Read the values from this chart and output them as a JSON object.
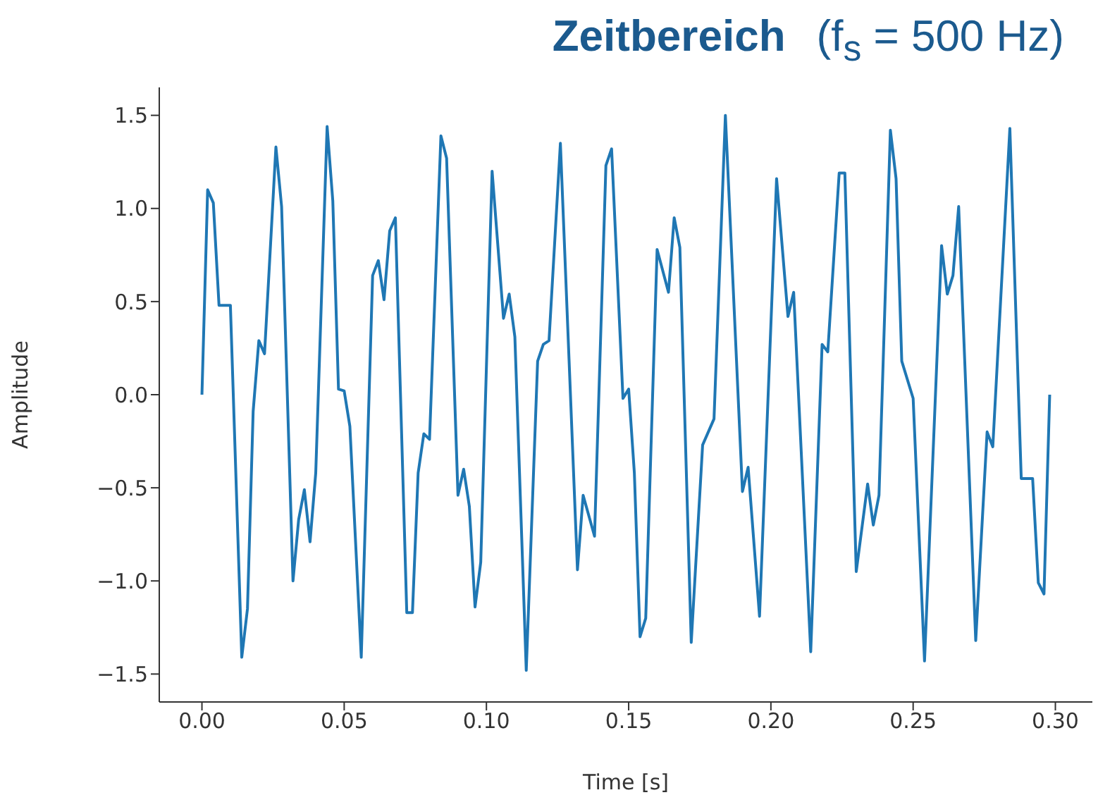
{
  "chart_data": {
    "type": "line",
    "title": "Zeitbereich",
    "subtitle": "(f$_{s}$ = 500 Hz)",
    "xlabel": "Time [s]",
    "ylabel": "Amplitude",
    "x": [
      0,
      0.002,
      0.004,
      0.006,
      0.01,
      0.014,
      0.016,
      0.018,
      0.02,
      0.022,
      0.026,
      0.028,
      0.032,
      0.034,
      0.036,
      0.038,
      0.04,
      0.044,
      0.046,
      0.048,
      0.05,
      0.052,
      0.056,
      0.06,
      0.062,
      0.064,
      0.066,
      0.068,
      0.072,
      0.074,
      0.076,
      0.078,
      0.08,
      0.084,
      0.086,
      0.09,
      0.092,
      0.094,
      0.096,
      0.098,
      0.102,
      0.106,
      0.108,
      0.11,
      0.114,
      0.118,
      0.12,
      0.122,
      0.126,
      0.132,
      0.134,
      0.138,
      0.142,
      0.144,
      0.148,
      0.15,
      0.152,
      0.154,
      0.156,
      0.16,
      0.164,
      0.166,
      0.168,
      0.172,
      0.176,
      0.18,
      0.184,
      0.19,
      0.192,
      0.196,
      0.202,
      0.206,
      0.208,
      0.214,
      0.218,
      0.22,
      0.224,
      0.226,
      0.23,
      0.234,
      0.236,
      0.238,
      0.242,
      0.244,
      0.246,
      0.25,
      0.254,
      0.26,
      0.262,
      0.264,
      0.266,
      0.272,
      0.276,
      0.278,
      0.284,
      0.288,
      0.292,
      0.294,
      0.296,
      0.298
    ],
    "series": [
      {
        "color": "#1f77b4",
        "values": [
          0,
          1.1,
          1.03,
          0.48,
          0.48,
          -1.41,
          -1.15,
          -0.09,
          0.29,
          0.22,
          1.33,
          1.01,
          -1.0,
          -0.67,
          -0.51,
          -0.79,
          -0.42,
          1.44,
          1.04,
          0.03,
          0.02,
          -0.17,
          -1.41,
          0.64,
          0.72,
          0.51,
          0.88,
          0.95,
          -1.17,
          -1.17,
          -0.42,
          -0.21,
          -0.24,
          1.39,
          1.27,
          -0.54,
          -0.4,
          -0.6,
          -1.14,
          -0.9,
          1.2,
          0.41,
          0.54,
          0.31,
          -1.48,
          0.18,
          0.27,
          0.29,
          1.35,
          -0.94,
          -0.54,
          -0.76,
          1.23,
          1.32,
          -0.02,
          0.03,
          -0.42,
          -1.3,
          -1.2,
          0.78,
          0.55,
          0.95,
          0.79,
          -1.33,
          -0.27,
          -0.13,
          1.5,
          -0.52,
          -0.39,
          -1.19,
          1.16,
          0.42,
          0.55,
          -1.38,
          0.27,
          0.23,
          1.19,
          1.19,
          -0.95,
          -0.48,
          -0.7,
          -0.54,
          1.42,
          1.16,
          0.18,
          -0.02,
          -1.43,
          0.8,
          0.54,
          0.64,
          1.01,
          -1.32,
          -0.2,
          -0.28,
          1.43,
          -0.45,
          -0.45,
          -1.01,
          -1.07,
          0.0
        ]
      }
    ],
    "xlim": [
      -0.015,
      0.313
    ],
    "ylim": [
      -1.65,
      1.65
    ],
    "xticks": [
      {
        "value": 0,
        "label": "0.00"
      },
      {
        "value": 0.05,
        "label": "0.05"
      },
      {
        "value": 0.1,
        "label": "0.10"
      },
      {
        "value": 0.15,
        "label": "0.15"
      },
      {
        "value": 0.2,
        "label": "0.20"
      },
      {
        "value": 0.25,
        "label": "0.25"
      },
      {
        "value": 0.3,
        "label": "0.30"
      }
    ],
    "yticks": [
      {
        "value": -1.5,
        "label": "−1.5"
      },
      {
        "value": -1,
        "label": "−1.0"
      },
      {
        "value": -0.5,
        "label": "−0.5"
      },
      {
        "value": 0,
        "label": "0.0"
      },
      {
        "value": 0.5,
        "label": "0.5"
      },
      {
        "value": 1,
        "label": "1.0"
      },
      {
        "value": 1.5,
        "label": "1.5"
      }
    ],
    "grid": false,
    "legend": false,
    "marker": "none",
    "line_style": "solid"
  }
}
